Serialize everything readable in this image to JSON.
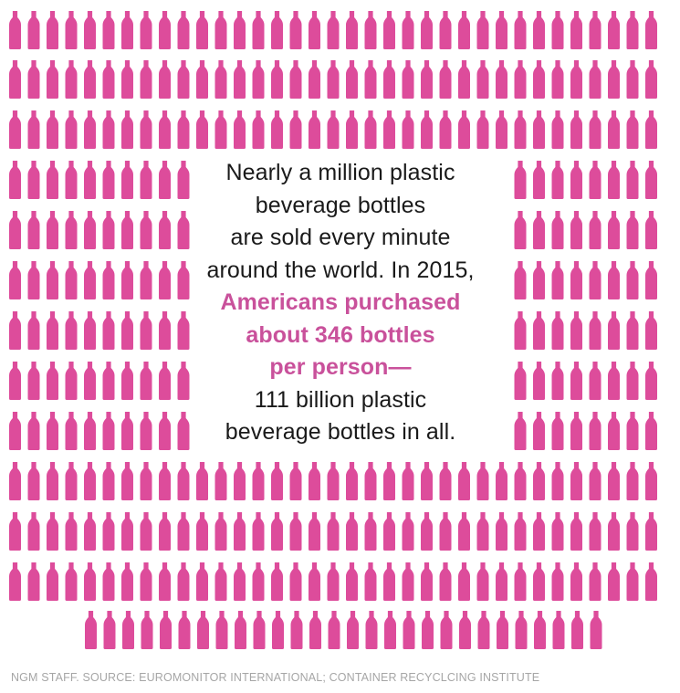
{
  "colors": {
    "bottle": "#dd4c9b",
    "highlight_text": "#c9519b",
    "body_text": "#1a1a1a",
    "credit_text": "#a6a6a6"
  },
  "icon": "plastic-bottle-icon",
  "statement": {
    "lines": [
      "Nearly a million plastic",
      "beverage bottles",
      "are sold every minute",
      "around the world. In 2015,"
    ],
    "highlight_lines": [
      "Americans purchased",
      "about 346 bottles",
      "per person—"
    ],
    "end_lines": [
      "111 billion plastic",
      "beverage bottles in all."
    ]
  },
  "credit": "NGM STAFF. SOURCE: EUROMONITOR INTERNATIONAL; CONTAINER RECYCLCING INSTITUTE"
}
